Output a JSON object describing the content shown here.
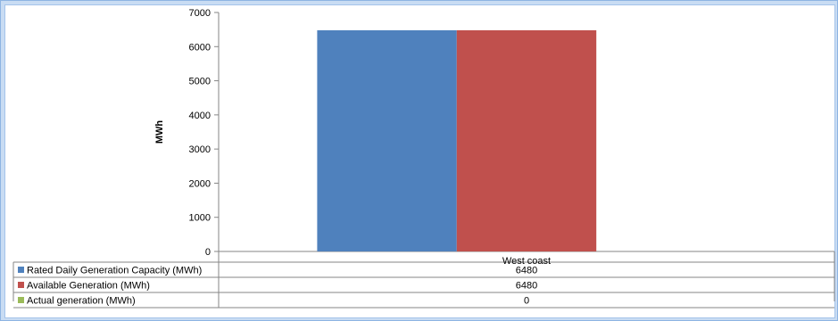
{
  "chart_data": {
    "type": "bar",
    "ylabel": "MWh",
    "ylim": [
      0,
      7000
    ],
    "yticks": [
      0,
      1000,
      2000,
      3000,
      4000,
      5000,
      6000,
      7000
    ],
    "categories": [
      "West coast"
    ],
    "series": [
      {
        "name": "Rated Daily Generation Capacity (MWh)",
        "values": [
          6480
        ],
        "color": "#4f81bd"
      },
      {
        "name": "Available Generation (MWh)",
        "values": [
          6480
        ],
        "color": "#c0504d"
      },
      {
        "name": "Actual generation (MWh)",
        "values": [
          0
        ],
        "color": "#9bbb59"
      }
    ],
    "legend": "data-table",
    "grid": false
  }
}
